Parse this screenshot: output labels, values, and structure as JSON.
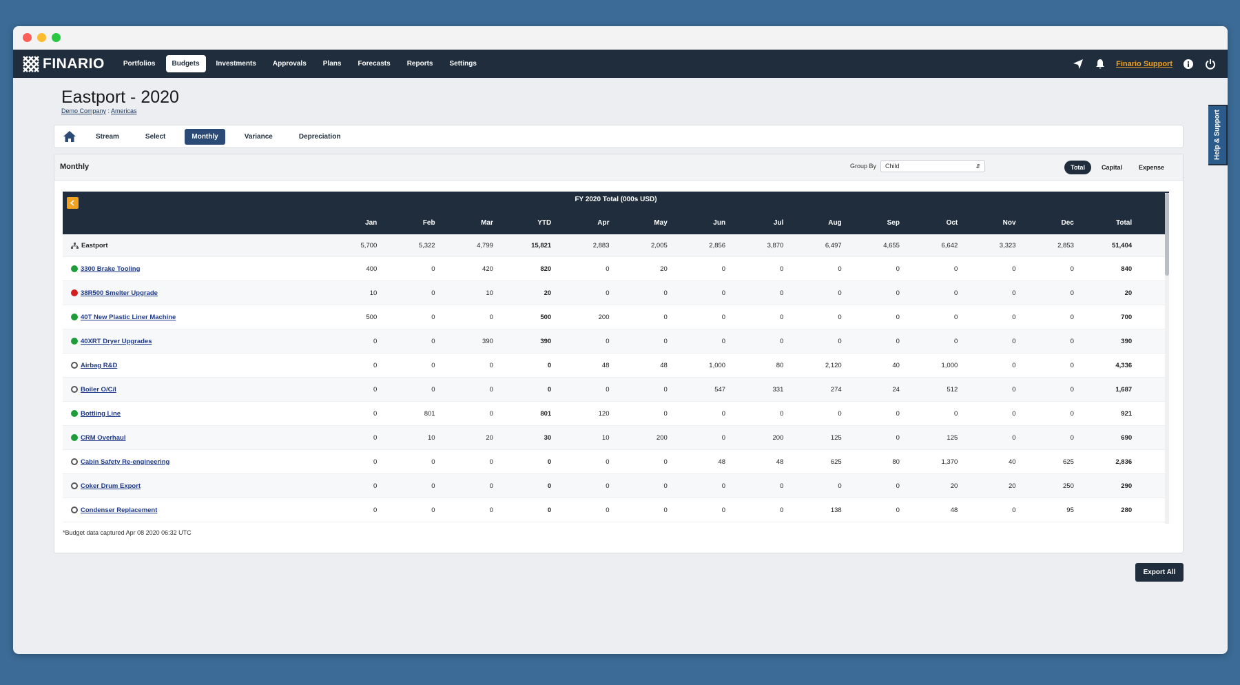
{
  "app": {
    "brand": "FINARIO",
    "nav": [
      "Portfolios",
      "Budgets",
      "Investments",
      "Approvals",
      "Plans",
      "Forecasts",
      "Reports",
      "Settings"
    ],
    "nav_active": "Budgets",
    "support_label": "Finario Support",
    "help_tab": "Help & Support"
  },
  "page": {
    "title": "Eastport - 2020",
    "breadcrumb_company": "Demo Company",
    "breadcrumb_sep": " : ",
    "breadcrumb_region": "Americas"
  },
  "subnav": {
    "items": [
      "Stream",
      "Select",
      "Monthly",
      "Variance",
      "Depreciation"
    ],
    "active": "Monthly"
  },
  "panel": {
    "title": "Monthly",
    "group_by_label": "Group By",
    "group_by_value": "Child",
    "toggles": [
      "Total",
      "Capital",
      "Expense"
    ],
    "toggle_active": "Total"
  },
  "table": {
    "caption": "FY 2020 Total (000s USD)",
    "columns": [
      "Jan",
      "Feb",
      "Mar",
      "YTD",
      "Apr",
      "May",
      "Jun",
      "Jul",
      "Aug",
      "Sep",
      "Oct",
      "Nov",
      "Dec",
      "Total"
    ],
    "summary": {
      "name": "Eastport",
      "values": [
        "5,700",
        "5,322",
        "4,799",
        "15,821",
        "2,883",
        "2,005",
        "2,856",
        "3,870",
        "6,497",
        "4,655",
        "6,642",
        "3,323",
        "2,853",
        "51,404"
      ]
    },
    "rows": [
      {
        "name": "3300 Brake Tooling",
        "status": "green",
        "values": [
          "400",
          "0",
          "420",
          "820",
          "0",
          "20",
          "0",
          "0",
          "0",
          "0",
          "0",
          "0",
          "0",
          "840"
        ]
      },
      {
        "name": "38R500 Smelter Upgrade",
        "status": "red",
        "values": [
          "10",
          "0",
          "10",
          "20",
          "0",
          "0",
          "0",
          "0",
          "0",
          "0",
          "0",
          "0",
          "0",
          "20"
        ]
      },
      {
        "name": "40T New Plastic Liner Machine",
        "status": "green",
        "values": [
          "500",
          "0",
          "0",
          "500",
          "200",
          "0",
          "0",
          "0",
          "0",
          "0",
          "0",
          "0",
          "0",
          "700"
        ]
      },
      {
        "name": "40XRT Dryer Upgrades",
        "status": "green",
        "values": [
          "0",
          "0",
          "390",
          "390",
          "0",
          "0",
          "0",
          "0",
          "0",
          "0",
          "0",
          "0",
          "0",
          "390"
        ]
      },
      {
        "name": "Airbag R&D",
        "status": "open",
        "values": [
          "0",
          "0",
          "0",
          "0",
          "48",
          "48",
          "1,000",
          "80",
          "2,120",
          "40",
          "1,000",
          "0",
          "0",
          "4,336"
        ]
      },
      {
        "name": "Boiler O/C/I",
        "status": "open",
        "values": [
          "0",
          "0",
          "0",
          "0",
          "0",
          "0",
          "547",
          "331",
          "274",
          "24",
          "512",
          "0",
          "0",
          "1,687"
        ]
      },
      {
        "name": "Bottling Line",
        "status": "green",
        "values": [
          "0",
          "801",
          "0",
          "801",
          "120",
          "0",
          "0",
          "0",
          "0",
          "0",
          "0",
          "0",
          "0",
          "921"
        ]
      },
      {
        "name": "CRM Overhaul",
        "status": "green",
        "values": [
          "0",
          "10",
          "20",
          "30",
          "10",
          "200",
          "0",
          "200",
          "125",
          "0",
          "125",
          "0",
          "0",
          "690"
        ]
      },
      {
        "name": "Cabin Safety Re-engineering",
        "status": "open",
        "values": [
          "0",
          "0",
          "0",
          "0",
          "0",
          "0",
          "48",
          "48",
          "625",
          "80",
          "1,370",
          "40",
          "625",
          "2,836"
        ]
      },
      {
        "name": "Coker Drum Export",
        "status": "open",
        "values": [
          "0",
          "0",
          "0",
          "0",
          "0",
          "0",
          "0",
          "0",
          "0",
          "0",
          "20",
          "20",
          "250",
          "290"
        ]
      },
      {
        "name": "Condenser Replacement",
        "status": "open",
        "values": [
          "0",
          "0",
          "0",
          "0",
          "0",
          "0",
          "0",
          "0",
          "138",
          "0",
          "48",
          "0",
          "95",
          "280"
        ]
      }
    ]
  },
  "footnote": "*Budget data captured Apr 08 2020 06:32 UTC",
  "export_label": "Export All",
  "colors": {
    "navbar": "#1f2d3d",
    "accent": "#f0a220",
    "status_green": "#1e9c3a",
    "status_red": "#d21f1f"
  }
}
